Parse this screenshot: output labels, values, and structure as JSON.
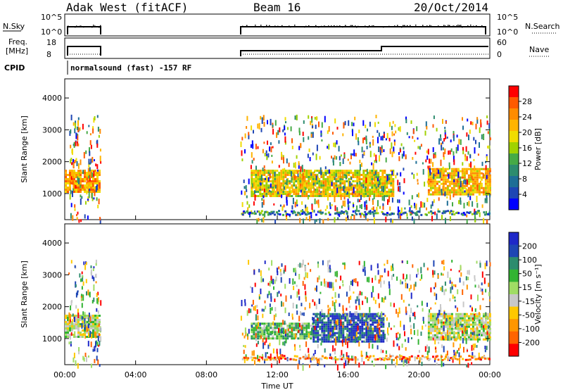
{
  "header": {
    "radar": "Adak West (fitACF)",
    "beam": "Beam 16",
    "date": "20/Oct/2014"
  },
  "top_panels": {
    "nsky_label": "N.Sky",
    "nsearch_label": "N.Search",
    "nsky_ticks": [
      "10^5",
      "10^0"
    ],
    "nsearch_ticks": [
      "10^5",
      "10^0"
    ],
    "freq_label_1": "Freq.",
    "freq_label_2": "[MHz]",
    "freq_ticks": [
      "18",
      "8"
    ],
    "nave_label": "Nave",
    "nave_ticks": [
      "60",
      "0"
    ],
    "cpid_label": "CPID",
    "cpid_text": "normalsound (fast) -157 RF"
  },
  "power_panel": {
    "ylabel": "Slant Range [km]",
    "cbar_label": "Power [dB]",
    "cbar_ticks": [
      "28",
      "24",
      "20",
      "16",
      "12",
      "8",
      "4"
    ],
    "cbar_colors": [
      "#ff0000",
      "#ff5a00",
      "#ff8c00",
      "#ffb400",
      "#f0dc00",
      "#a0d200",
      "#46aa46",
      "#2d8c6e",
      "#1e6e96",
      "#1e46b4",
      "#0000ff"
    ]
  },
  "velocity_panel": {
    "ylabel": "Slant Range [km]",
    "cbar_label": "Velocity [m s⁻¹]",
    "cbar_ticks": [
      "200",
      "100",
      "50",
      "15",
      "-15",
      "-50",
      "-100",
      "-200"
    ],
    "cbar_colors": [
      "#1e28c8",
      "#1e46b4",
      "#2d8c6e",
      "#32b432",
      "#a0dc64",
      "#c8c8c8",
      "#ffc800",
      "#ff9600",
      "#ff6400",
      "#ff0000"
    ]
  },
  "xaxis": {
    "label": "Time UT",
    "ticks": [
      "00:00",
      "04:00",
      "08:00",
      "12:00",
      "16:00",
      "20:00",
      "00:00"
    ]
  },
  "chart_data": [
    {
      "type": "heatmap",
      "title": "Power [dB]",
      "xlabel": "Time UT",
      "ylabel": "Slant Range [km]",
      "xlim": [
        0,
        24
      ],
      "ylim": [
        180,
        4600
      ],
      "yticks": [
        1000,
        2000,
        3000,
        4000
      ],
      "clim": [
        0,
        30
      ],
      "regions": [
        {
          "t": [
            0.0,
            2.0
          ],
          "range": [
            1050,
            1750
          ],
          "value": 22
        },
        {
          "t": [
            10.5,
            18.5
          ],
          "range": [
            900,
            1750
          ],
          "value": 18
        },
        {
          "t": [
            20.5,
            24.0
          ],
          "range": [
            1000,
            1800
          ],
          "value": 20
        }
      ]
    },
    {
      "type": "heatmap",
      "title": "Velocity [m s⁻¹]",
      "xlabel": "Time UT",
      "ylabel": "Slant Range [km]",
      "xlim": [
        0,
        24
      ],
      "ylim": [
        180,
        4600
      ],
      "yticks": [
        1000,
        2000,
        3000,
        4000
      ],
      "clim": [
        -200,
        200
      ],
      "regions": [
        {
          "t": [
            0.0,
            2.0
          ],
          "range": [
            1050,
            1750
          ],
          "value": 0
        },
        {
          "t": [
            10.5,
            14.0
          ],
          "range": [
            1000,
            1500
          ],
          "value": 50
        },
        {
          "t": [
            14.0,
            18.0
          ],
          "range": [
            900,
            1800
          ],
          "value": 150
        },
        {
          "t": [
            20.5,
            24.0
          ],
          "range": [
            1000,
            1800
          ],
          "value": 0
        }
      ]
    }
  ]
}
